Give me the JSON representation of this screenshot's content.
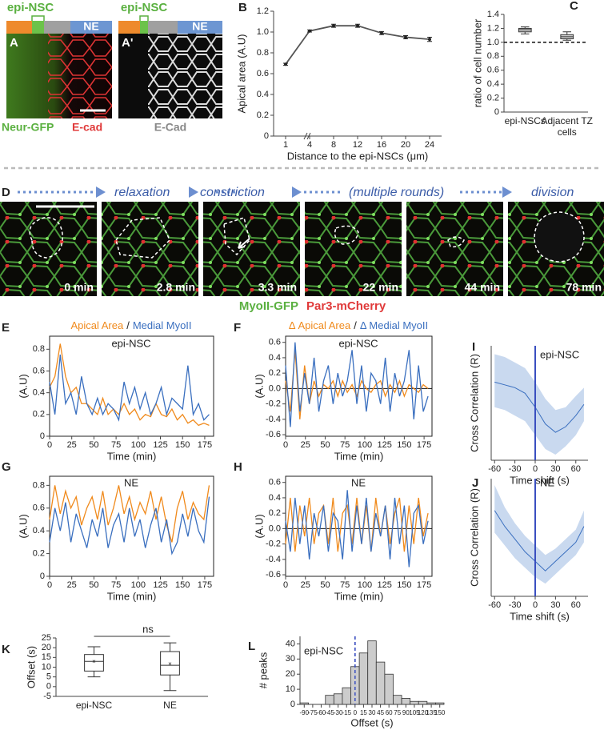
{
  "panel_a": {
    "panel": "A",
    "top_label": "epi-NSC",
    "region_label": "NE",
    "captions": [
      "Neur-GFP",
      "E-cad"
    ]
  },
  "panel_a2": {
    "panel": "A'",
    "top_label": "epi-NSC",
    "region_label": "NE",
    "caption": "E-Cad"
  },
  "panel_d": {
    "panel": "D",
    "steps": [
      "relaxation",
      "constriction",
      "(multiple rounds)",
      "division"
    ],
    "times": [
      "0 min",
      "2.8 min",
      "3.3 min",
      "22 min",
      "44 min",
      "78 min"
    ],
    "captions": [
      "MyoII-GFP",
      "Par3-mCherry"
    ]
  },
  "chart_data": [
    {
      "type": "line",
      "panel": "B",
      "ylabel": "Apical area (A.U)",
      "xlabel": "Distance to the epi-NSCs (μm)",
      "categories": [
        "1",
        "4",
        "8",
        "12",
        "16",
        "20",
        "24"
      ],
      "values": [
        0.69,
        1.01,
        1.06,
        1.06,
        0.99,
        0.95,
        0.93
      ],
      "errors": [
        0.01,
        0.01,
        0.015,
        0.015,
        0.015,
        0.015,
        0.02
      ],
      "color": "#555555",
      "ylim": [
        0,
        1.2
      ],
      "yticks": [
        0,
        0.2,
        0.4,
        0.6,
        0.8,
        {
          "value": 1,
          "label": "1.0"
        },
        1.2
      ]
    },
    {
      "type": "box",
      "panel": "C",
      "ylabel": "ratio of cell number",
      "categories": [
        "epi-NSCs",
        "Adjacent TZ cells"
      ],
      "boxes": [
        {
          "min": 1.12,
          "q1": 1.15,
          "median": 1.18,
          "q3": 1.2,
          "max": 1.22
        },
        {
          "min": 1.03,
          "q1": 1.05,
          "median": 1.08,
          "q3": 1.11,
          "max": 1.15
        }
      ],
      "color": "#cccccc",
      "hline": 1,
      "ylim": [
        0,
        1.4
      ],
      "yticks": [
        0,
        0.2,
        0.4,
        0.6,
        0.8,
        {
          "value": 1,
          "label": "1.0"
        },
        1.2,
        1.4
      ]
    },
    {
      "type": "line",
      "panel": "E",
      "annotation": "epi-NSC",
      "legend_separator": "/",
      "ylabel": "(A.U)",
      "xlabel": "Time (min)",
      "x": [
        0,
        6,
        12,
        18,
        24,
        30,
        36,
        42,
        48,
        54,
        60,
        66,
        72,
        78,
        84,
        90,
        96,
        102,
        108,
        114,
        120,
        126,
        132,
        138,
        144,
        150,
        156,
        162,
        168,
        174,
        180
      ],
      "series": [
        {
          "name": "Apical Area",
          "color": "#f08a1c",
          "values": [
            0.45,
            0.55,
            0.85,
            0.55,
            0.4,
            0.45,
            0.3,
            0.3,
            0.25,
            0.2,
            0.35,
            0.2,
            0.25,
            0.2,
            0.3,
            0.2,
            0.25,
            0.15,
            0.2,
            0.18,
            0.3,
            0.2,
            0.18,
            0.25,
            0.15,
            0.2,
            0.12,
            0.15,
            0.1,
            0.12,
            0.1
          ]
        },
        {
          "name": "Medial MyoII",
          "color": "#3a6fbf",
          "values": [
            0.5,
            0.2,
            0.75,
            0.3,
            0.4,
            0.2,
            0.55,
            0.3,
            0.2,
            0.35,
            0.2,
            0.3,
            0.25,
            0.15,
            0.5,
            0.3,
            0.45,
            0.25,
            0.4,
            0.2,
            0.3,
            0.45,
            0.2,
            0.35,
            0.3,
            0.25,
            0.65,
            0.2,
            0.3,
            0.15,
            0.2
          ]
        }
      ],
      "xlim": [
        0,
        185
      ],
      "xticks": [
        0,
        25,
        50,
        75,
        100,
        125,
        150,
        175
      ],
      "ylim": [
        0,
        0.92
      ],
      "yticks": [
        0,
        0.2,
        0.4,
        0.6,
        0.8
      ]
    },
    {
      "type": "line",
      "panel": "F",
      "annotation": "epi-NSC",
      "legend_separator": "/",
      "ylabel": "(A.U)",
      "xlabel": "Time (min)",
      "hline": 0,
      "x": [
        0,
        6,
        12,
        18,
        24,
        30,
        36,
        42,
        48,
        54,
        60,
        66,
        72,
        78,
        84,
        90,
        96,
        102,
        108,
        114,
        120,
        126,
        132,
        138,
        144,
        150,
        156,
        162,
        168,
        174,
        180
      ],
      "series": [
        {
          "name": "Δ Apical Area",
          "color": "#f08a1c",
          "values": [
            0.1,
            -0.3,
            0.5,
            -0.4,
            0.3,
            -0.2,
            0.1,
            -0.1,
            0.05,
            0,
            0.1,
            -0.1,
            0.1,
            -0.05,
            0.05,
            -0.1,
            0.1,
            0,
            -0.05,
            0.05,
            0.1,
            -0.1,
            0.05,
            -0.05,
            0.1,
            -0.1,
            0.05,
            0,
            -0.05,
            0.05,
            0
          ]
        },
        {
          "name": "Δ Medial MyoII",
          "color": "#3a6fbf",
          "values": [
            0.3,
            -0.5,
            0.6,
            -0.3,
            0.2,
            -0.2,
            0.4,
            -0.3,
            0.1,
            0.3,
            -0.2,
            0.2,
            -0.1,
            0.1,
            0.5,
            -0.2,
            0.3,
            -0.3,
            0.2,
            0.1,
            -0.2,
            0.4,
            -0.3,
            0.2,
            -0.1,
            0.1,
            0.5,
            -0.4,
            0.3,
            -0.3,
            -0.1
          ]
        }
      ],
      "xlim": [
        0,
        185
      ],
      "xticks": [
        0,
        25,
        50,
        75,
        100,
        125,
        150,
        175
      ],
      "ylim": [
        -0.62,
        0.68
      ],
      "yticks": [
        -0.6,
        -0.4,
        -0.2,
        {
          "value": 0,
          "label": "0.0"
        },
        0.2,
        0.4,
        0.6
      ]
    },
    {
      "type": "line",
      "panel": "G",
      "annotation": "NE",
      "ylabel": "(A.U)",
      "xlabel": "Time (min)",
      "x": [
        0,
        6,
        12,
        18,
        24,
        30,
        36,
        42,
        48,
        54,
        60,
        66,
        72,
        78,
        84,
        90,
        96,
        102,
        108,
        114,
        120,
        126,
        132,
        138,
        144,
        150,
        156,
        162,
        168,
        174,
        180
      ],
      "series": [
        {
          "color": "#f08a1c",
          "values": [
            0.5,
            0.8,
            0.55,
            0.75,
            0.6,
            0.7,
            0.45,
            0.6,
            0.7,
            0.5,
            0.75,
            0.45,
            0.6,
            0.8,
            0.55,
            0.7,
            0.5,
            0.65,
            0.55,
            0.75,
            0.5,
            0.7,
            0.45,
            0.3,
            0.6,
            0.75,
            0.5,
            0.65,
            0.55,
            0.5,
            0.8
          ]
        },
        {
          "color": "#3a6fbf",
          "values": [
            0.3,
            0.6,
            0.4,
            0.65,
            0.3,
            0.55,
            0.4,
            0.25,
            0.5,
            0.35,
            0.6,
            0.25,
            0.45,
            0.55,
            0.3,
            0.6,
            0.35,
            0.5,
            0.25,
            0.45,
            0.6,
            0.3,
            0.5,
            0.2,
            0.3,
            0.55,
            0.35,
            0.6,
            0.4,
            0.3,
            0.7
          ]
        }
      ],
      "xlim": [
        0,
        185
      ],
      "xticks": [
        0,
        25,
        50,
        75,
        100,
        125,
        150,
        175
      ],
      "ylim": [
        0,
        0.88
      ],
      "yticks": [
        0,
        0.2,
        0.4,
        0.6,
        0.8
      ]
    },
    {
      "type": "line",
      "panel": "H",
      "annotation": "NE",
      "ylabel": "(A.U)",
      "xlabel": "Time (min)",
      "hline": 0,
      "x": [
        0,
        6,
        12,
        18,
        24,
        30,
        36,
        42,
        48,
        54,
        60,
        66,
        72,
        78,
        84,
        90,
        96,
        102,
        108,
        114,
        120,
        126,
        132,
        138,
        144,
        150,
        156,
        162,
        168,
        174,
        180
      ],
      "series": [
        {
          "color": "#f08a1c",
          "values": [
            -0.2,
            0.4,
            -0.3,
            0.3,
            -0.1,
            0.4,
            -0.2,
            0.2,
            0.3,
            -0.2,
            0.4,
            -0.3,
            0.2,
            0.3,
            -0.2,
            0.4,
            -0.2,
            0.3,
            -0.3,
            0.4,
            -0.1,
            0.3,
            -0.2,
            0.2,
            0.4,
            -0.3,
            0.3,
            -0.2,
            0.4,
            -0.1,
            0.2
          ]
        },
        {
          "color": "#3a6fbf",
          "values": [
            0.1,
            -0.3,
            0.4,
            -0.2,
            0.3,
            -0.4,
            0.2,
            -0.1,
            0.3,
            -0.3,
            0.2,
            0.1,
            -0.4,
            0.5,
            -0.3,
            0.3,
            -0.2,
            0.4,
            -0.3,
            0.2,
            -0.1,
            0.3,
            -0.4,
            0.4,
            -0.2,
            0.3,
            -0.5,
            0.2,
            0.3,
            -0.2,
            0.1
          ]
        }
      ],
      "xlim": [
        0,
        185
      ],
      "xticks": [
        0,
        25,
        50,
        75,
        100,
        125,
        150,
        175
      ],
      "ylim": [
        -0.62,
        0.68
      ],
      "yticks": [
        -0.6,
        -0.4,
        -0.2,
        {
          "value": 0,
          "label": "0.0"
        },
        0.2,
        0.4,
        0.6
      ]
    },
    {
      "type": "band",
      "panel": "I",
      "annotation": "epi-NSC",
      "ylabel": "Cross Correlation (R)",
      "xlabel": "Time shift (s)",
      "vline": 0,
      "x": [
        -60,
        -45,
        -30,
        -15,
        0,
        15,
        30,
        45,
        60,
        72
      ],
      "values": [
        0.35,
        0.3,
        0.25,
        0.15,
        -0.1,
        -0.4,
        -0.55,
        -0.45,
        -0.25,
        -0.05
      ],
      "lower": [
        -0.1,
        -0.15,
        -0.25,
        -0.35,
        -0.6,
        -0.85,
        -0.95,
        -0.8,
        -0.6,
        -0.35
      ],
      "upper": [
        0.85,
        0.8,
        0.7,
        0.6,
        0.35,
        0.05,
        -0.15,
        -0.1,
        0.1,
        0.25
      ],
      "color": "#3a6fbf",
      "band_color": "#c9d9ef",
      "xlim": [
        -65,
        78
      ],
      "xticks": [
        -60,
        -30,
        0,
        30,
        60
      ],
      "ylim": [
        -1.05,
        1
      ]
    },
    {
      "type": "band",
      "panel": "J",
      "annotation": "NE",
      "ylabel": "Cross Correlation (R)",
      "xlabel": "Time shift (s)",
      "vline": 0,
      "x": [
        -60,
        -45,
        -30,
        -15,
        0,
        15,
        30,
        45,
        60,
        72
      ],
      "values": [
        0.35,
        0.1,
        -0.1,
        -0.3,
        -0.45,
        -0.6,
        -0.45,
        -0.3,
        -0.15,
        0.1
      ],
      "lower": [
        0,
        -0.2,
        -0.4,
        -0.55,
        -0.7,
        -0.8,
        -0.65,
        -0.5,
        -0.35,
        -0.15
      ],
      "upper": [
        0.75,
        0.4,
        0.15,
        -0.05,
        -0.2,
        -0.35,
        -0.25,
        -0.1,
        0.05,
        0.35
      ],
      "color": "#3a6fbf",
      "band_color": "#c9d9ef",
      "xlim": [
        -65,
        78
      ],
      "xticks": [
        -60,
        -30,
        0,
        30,
        60
      ],
      "ylim": [
        -1,
        0.85
      ]
    },
    {
      "type": "box",
      "panel": "K",
      "ylabel": "Offset (s)",
      "annotation": "ns",
      "categories": [
        "epi-NSC",
        "NE"
      ],
      "boxes": [
        {
          "min": 5,
          "q1": 8,
          "median": 13,
          "q3": 16.5,
          "max": 20.5,
          "mean": 12.8
        },
        {
          "min": -2,
          "q1": 6,
          "median": 11,
          "q3": 18,
          "max": 22.5,
          "mean": 11.5
        }
      ],
      "color": "#ffffff",
      "ylim": [
        -5,
        25
      ],
      "yticks": [
        -5,
        0,
        5,
        10,
        15,
        20,
        25
      ]
    },
    {
      "type": "histogram",
      "panel": "L",
      "annotation": "epi-NSC",
      "ylabel": "# peaks",
      "xlabel": "Offset (s)",
      "vline": 0,
      "bins": [
        -97.5,
        -82.5,
        -67.5,
        -52.5,
        -37.5,
        -22.5,
        -7.5,
        7.5,
        22.5,
        37.5,
        52.5,
        67.5,
        82.5,
        97.5,
        112.5,
        127.5,
        142.5,
        157.5
      ],
      "values": [
        1,
        0,
        0,
        6,
        7,
        11,
        25,
        34,
        42,
        28,
        20,
        6,
        4,
        2,
        2,
        1,
        1
      ],
      "color": "#cccccc",
      "xlim": [
        -97.5,
        157.5
      ],
      "xticks": [
        -90,
        -75,
        -60,
        -45,
        -30,
        -15,
        0,
        15,
        30,
        45,
        60,
        75,
        90,
        105,
        120,
        135,
        150
      ],
      "ylim": [
        0,
        45
      ],
      "yticks": [
        0,
        10,
        20,
        30,
        40
      ]
    }
  ]
}
